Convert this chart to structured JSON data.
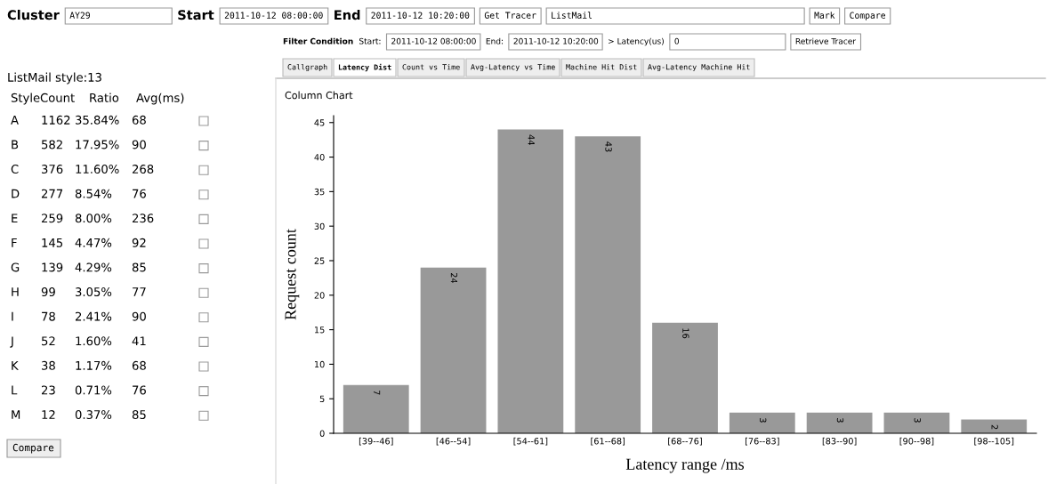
{
  "chart_data": [
    {
      "type": "other",
      "annotations": [
        "Cluster",
        "AY29",
        "Start",
        "2011-10-12 08:00:00",
        "End",
        "2011-10-12 10:20:00",
        "Get Tracer",
        "ListMail",
        "Mark",
        "Compare",
        "Filter Condition",
        "Start:",
        "2011-10-12 08:00:00",
        "End:",
        "2011-10-12 10:20:00",
        "> Latency(us)",
        "0",
        "Retrieve Tracer",
        "Callgraph",
        "Latency Dist",
        "Count vs Time",
        "Avg-Latency vs Time",
        "Machine Hit Dist",
        "Avg-Latency Machine Hit",
        "ListMail style:13",
        "Style Count Ratio Avg(ms)",
        "A 1162 35.84% 68",
        "B 582 17.95% 90",
        "C 376 11.60% 268",
        "D 277 8.54% 76",
        "E 259 8.00% 236",
        "F 145 4.47% 92",
        "G 139 4.29% 85",
        "H 99 3.05% 77",
        "I 78 2.41% 90",
        "J 52 1.60% 41",
        "K 38 1.17% 68",
        "L 23 0.71% 76",
        "M 12 0.37% 85",
        "Compare"
      ]
    },
    {
      "type": "bar",
      "title": "Column Chart",
      "xlabel": "Latency range /ms",
      "ylabel": "Request count",
      "categories": [
        "[39--46]",
        "[46--54]",
        "[54--61]",
        "[61--68]",
        "[68--76]",
        "[76--83]",
        "[83--90]",
        "[90--98]",
        "[98--105]"
      ],
      "values": [
        7,
        24,
        44,
        43,
        16,
        3,
        3,
        3,
        2
      ],
      "color": "#999999",
      "data_labels": true,
      "ylim": [
        0,
        46
      ],
      "yticks": [
        0,
        5,
        10,
        15,
        20,
        25,
        30,
        35,
        40,
        45
      ],
      "grid": false
    }
  ]
}
